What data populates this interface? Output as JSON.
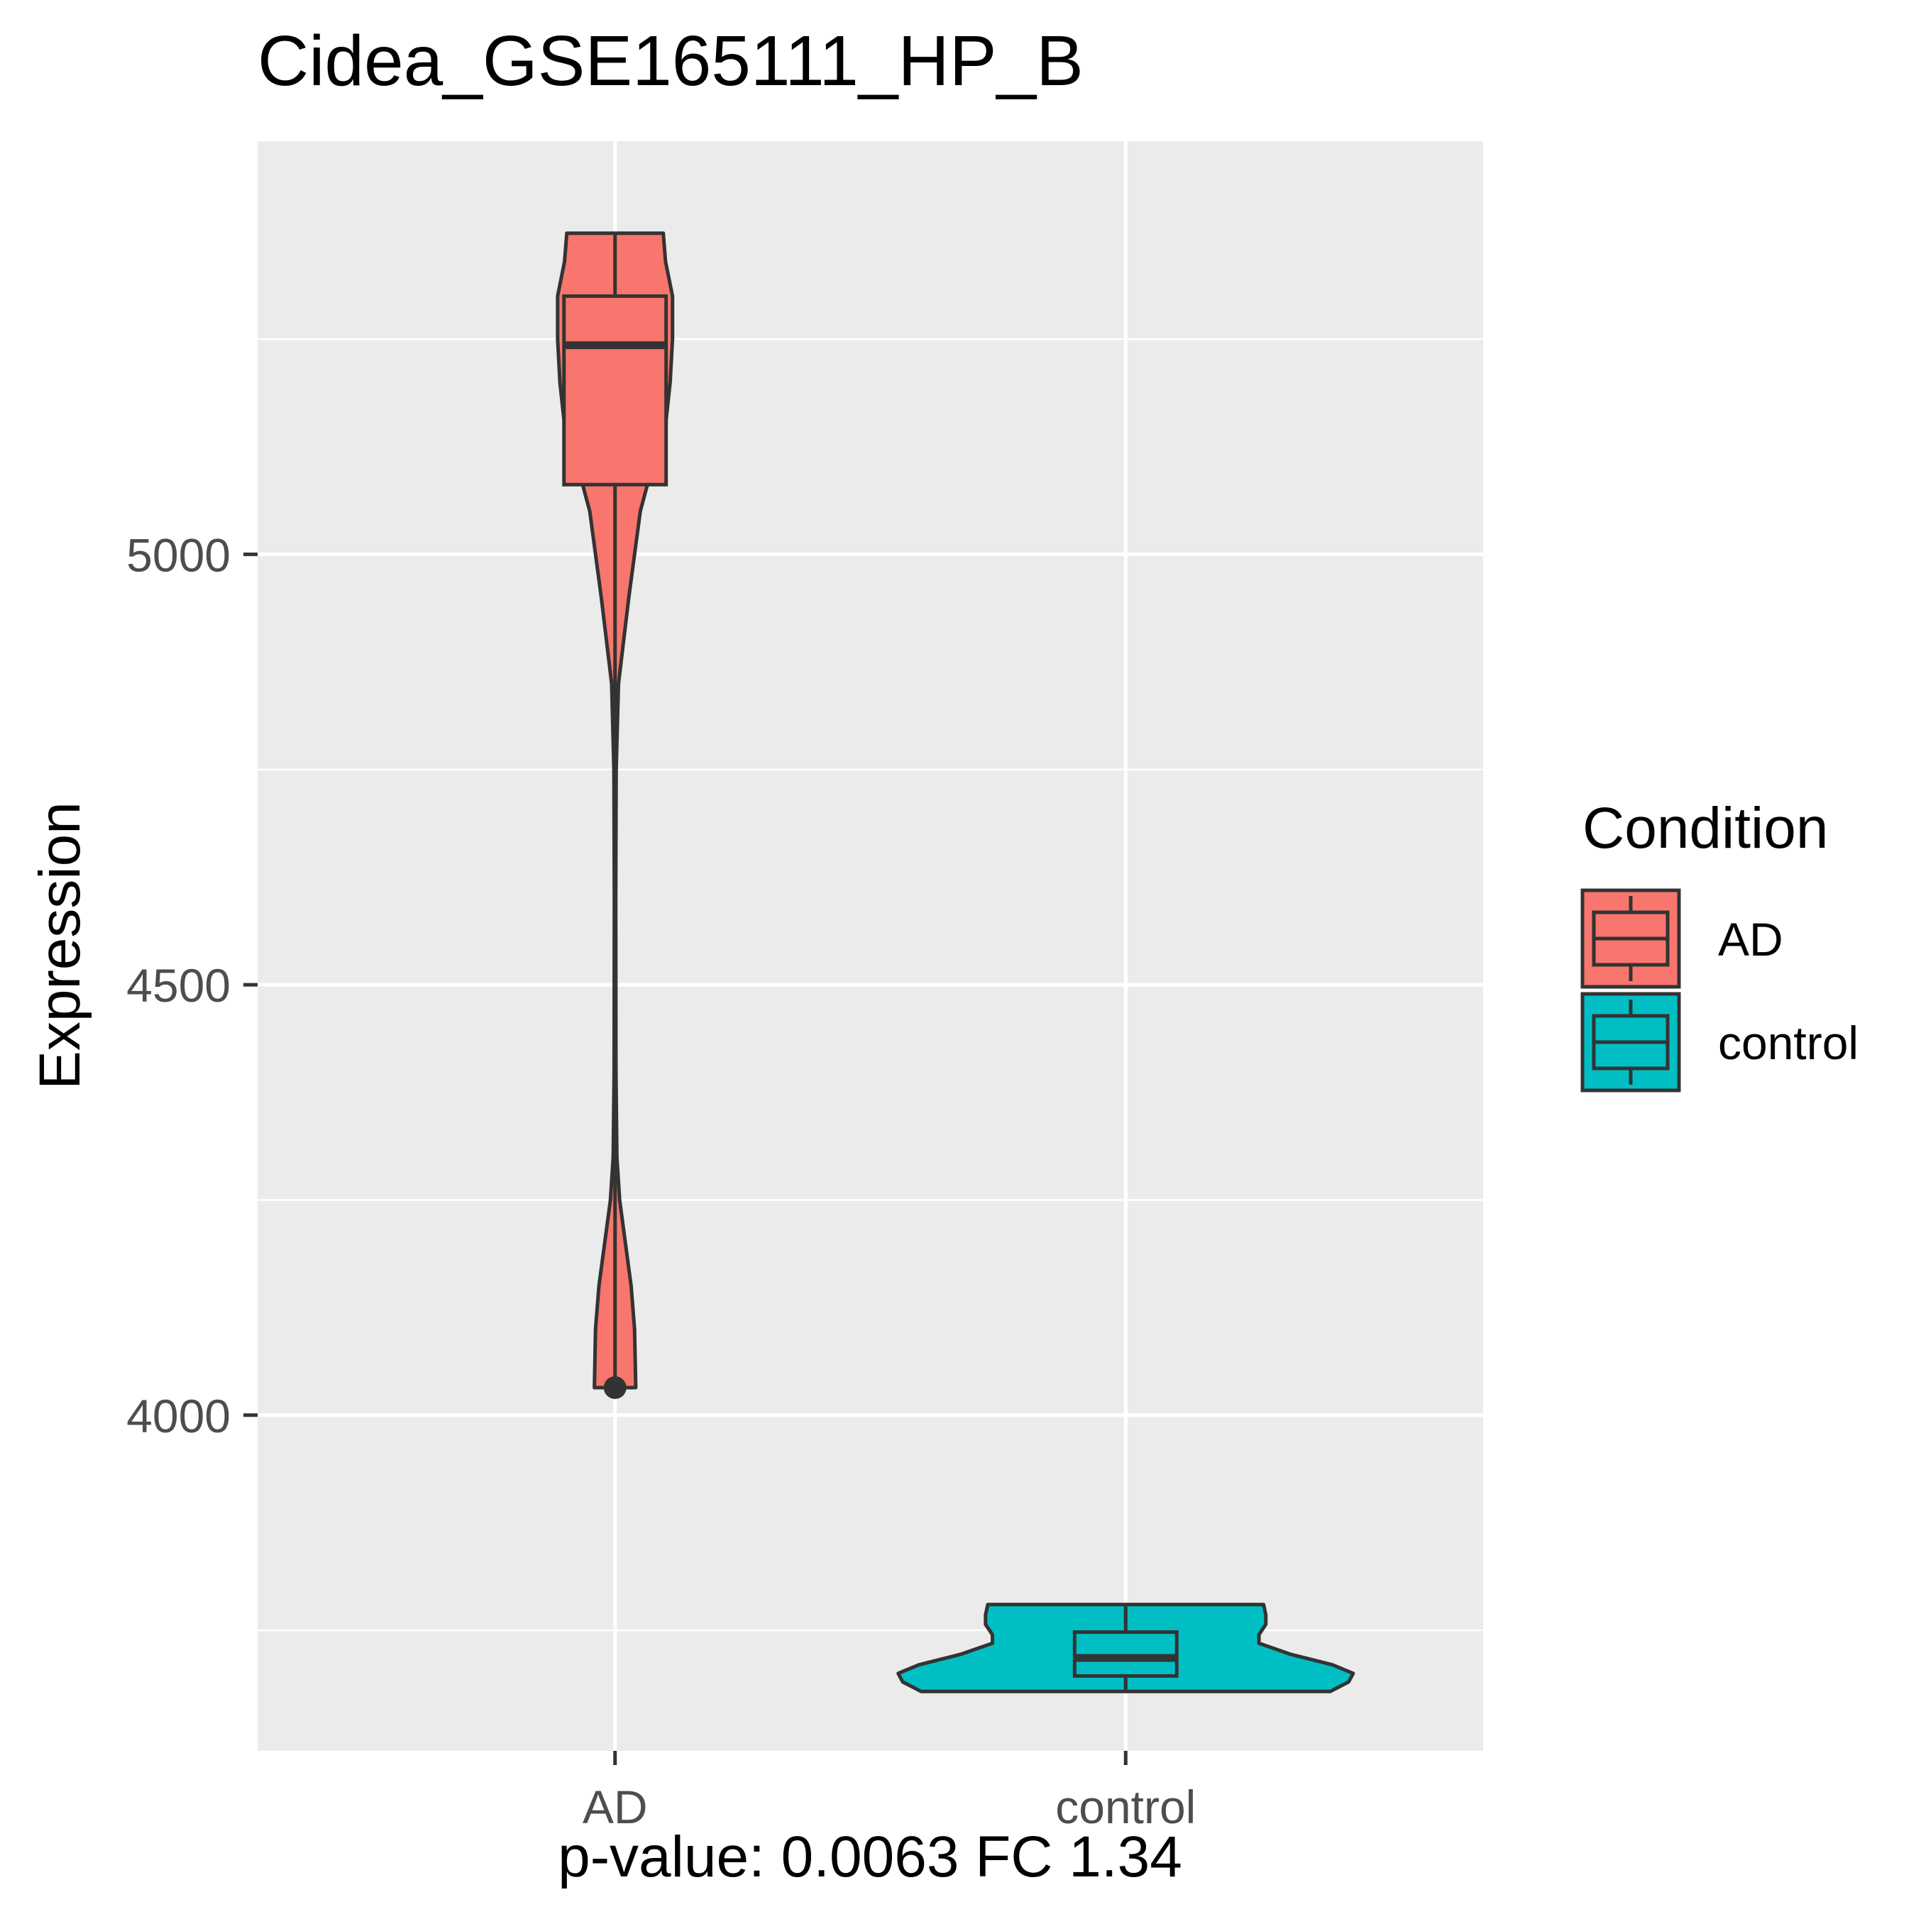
{
  "chart_data": {
    "type": "violin",
    "title": "Cidea_GSE165111_HP_B",
    "xlabel": "p-value: 0.0063 FC 1.34",
    "ylabel": "Expression",
    "categories": [
      "AD",
      "control"
    ],
    "ylim": [
      3610,
      5480
    ],
    "yticks": [
      4000,
      4500,
      5000
    ],
    "grid": true,
    "legend": {
      "title": "Condition",
      "position": "right",
      "entries": [
        {
          "label": "AD",
          "color": "#F8766D"
        },
        {
          "label": "control",
          "color": "#00BFC4"
        }
      ]
    },
    "series": [
      {
        "name": "AD",
        "color": "#F8766D",
        "box": {
          "min": 4032,
          "q1": 5081,
          "median": 5243,
          "q3": 5300,
          "max": 5373
        },
        "outliers": [
          4032
        ],
        "density": [
          [
            4032,
            0.09
          ],
          [
            4100,
            0.085
          ],
          [
            4150,
            0.07
          ],
          [
            4200,
            0.045
          ],
          [
            4250,
            0.02
          ],
          [
            4300,
            0.008
          ],
          [
            4400,
            0.004
          ],
          [
            4600,
            0.003
          ],
          [
            4750,
            0.005
          ],
          [
            4850,
            0.015
          ],
          [
            4950,
            0.06
          ],
          [
            5050,
            0.11
          ],
          [
            5100,
            0.16
          ],
          [
            5150,
            0.22
          ],
          [
            5200,
            0.24
          ],
          [
            5250,
            0.25
          ],
          [
            5300,
            0.25
          ],
          [
            5340,
            0.22
          ],
          [
            5373,
            0.21
          ]
        ]
      },
      {
        "name": "control",
        "color": "#00BFC4",
        "box": {
          "min": 3679,
          "q1": 3697,
          "median": 3718,
          "q3": 3748,
          "max": 3780
        },
        "outliers": [],
        "density": [
          [
            3679,
            0.89
          ],
          [
            3690,
            0.97
          ],
          [
            3700,
            0.99
          ],
          [
            3710,
            0.9
          ],
          [
            3722,
            0.72
          ],
          [
            3735,
            0.58
          ],
          [
            3745,
            0.58
          ],
          [
            3757,
            0.61
          ],
          [
            3768,
            0.61
          ],
          [
            3780,
            0.6
          ]
        ]
      }
    ]
  }
}
